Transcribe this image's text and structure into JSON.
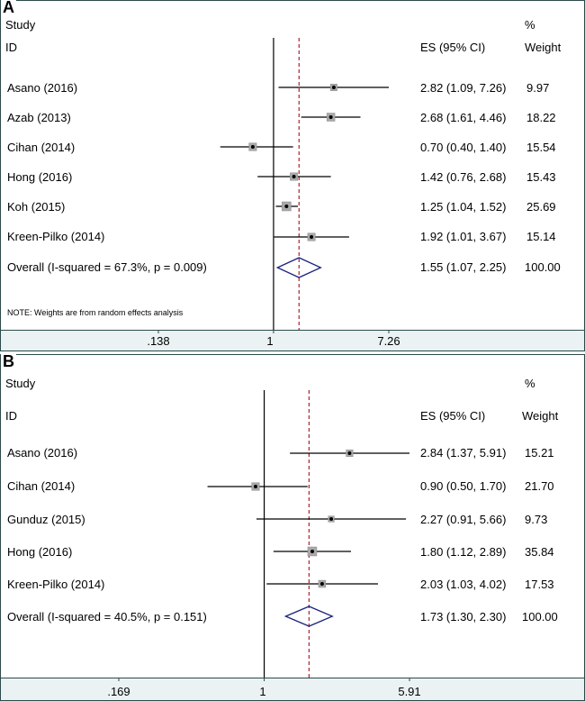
{
  "chart_data": [
    {
      "type": "forest",
      "panel_label": "A",
      "headers": {
        "study": "Study",
        "id": "ID",
        "es": "ES (95% CI)",
        "pct": "%",
        "weight": "Weight"
      },
      "scale": "log",
      "xlim": [
        0.138,
        7.26
      ],
      "ticks": [
        ".138",
        "1",
        "7.26"
      ],
      "tick_values": [
        0.138,
        1,
        7.26
      ],
      "ref_line": 1,
      "pooled_line": 1.55,
      "studies": [
        {
          "id": "Asano (2016)",
          "es": 2.82,
          "lo": 1.09,
          "hi": 7.26,
          "es_text": "2.82 (1.09, 7.26)",
          "weight": "9.97"
        },
        {
          "id": "Azab (2013)",
          "es": 2.68,
          "lo": 1.61,
          "hi": 4.46,
          "es_text": "2.68 (1.61, 4.46)",
          "weight": "18.22"
        },
        {
          "id": "Cihan (2014)",
          "es": 0.7,
          "lo": 0.4,
          "hi": 1.4,
          "es_text": "0.70 (0.40, 1.40)",
          "weight": "15.54"
        },
        {
          "id": "Hong (2016)",
          "es": 1.42,
          "lo": 0.76,
          "hi": 2.68,
          "es_text": "1.42 (0.76, 2.68)",
          "weight": "15.43"
        },
        {
          "id": "Koh (2015)",
          "es": 1.25,
          "lo": 1.04,
          "hi": 1.52,
          "es_text": "1.25 (1.04, 1.52)",
          "weight": "25.69"
        },
        {
          "id": "Kreen-Pilko (2014)",
          "es": 1.92,
          "lo": 1.01,
          "hi": 3.67,
          "es_text": "1.92 (1.01, 3.67)",
          "weight": "15.14"
        }
      ],
      "overall": {
        "id": "Overall  (I-squared = 67.3%, p = 0.009)",
        "es": 1.55,
        "lo": 1.07,
        "hi": 2.25,
        "es_text": "1.55 (1.07, 2.25)",
        "weight": "100.00"
      },
      "note": "NOTE: Weights are from random effects analysis"
    },
    {
      "type": "forest",
      "panel_label": "B",
      "headers": {
        "study": "Study",
        "id": "ID",
        "es": "ES (95% CI)",
        "pct": "%",
        "weight": "Weight"
      },
      "scale": "log",
      "xlim": [
        0.169,
        5.91
      ],
      "ticks": [
        ".169",
        "1",
        "5.91"
      ],
      "tick_values": [
        0.169,
        1,
        5.91
      ],
      "ref_line": 1,
      "pooled_line": 1.73,
      "studies": [
        {
          "id": "Asano (2016)",
          "es": 2.84,
          "lo": 1.37,
          "hi": 5.91,
          "es_text": "2.84 (1.37, 5.91)",
          "weight": "15.21"
        },
        {
          "id": "Cihan (2014)",
          "es": 0.9,
          "lo": 0.5,
          "hi": 1.7,
          "es_text": "0.90 (0.50, 1.70)",
          "weight": "21.70"
        },
        {
          "id": "Gunduz (2015)",
          "es": 2.27,
          "lo": 0.91,
          "hi": 5.66,
          "es_text": "2.27 (0.91, 5.66)",
          "weight": "9.73"
        },
        {
          "id": "Hong (2016)",
          "es": 1.8,
          "lo": 1.12,
          "hi": 2.89,
          "es_text": "1.80 (1.12, 2.89)",
          "weight": "35.84"
        },
        {
          "id": "Kreen-Pilko (2014)",
          "es": 2.03,
          "lo": 1.03,
          "hi": 4.02,
          "es_text": "2.03 (1.03, 4.02)",
          "weight": "17.53"
        }
      ],
      "overall": {
        "id": "Overall  (I-squared = 40.5%, p = 0.151)",
        "es": 1.73,
        "lo": 1.3,
        "hi": 2.3,
        "es_text": "1.73 (1.30, 2.30)",
        "weight": "100.00"
      }
    }
  ],
  "colors": {
    "ref_line": "#000000",
    "pooled_line": "#b02030",
    "diamond": "#1a237e",
    "box": "#a9a9a9",
    "axis_band": "#eaf2f3"
  }
}
